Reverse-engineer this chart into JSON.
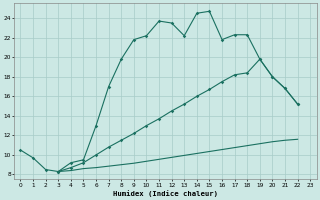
{
  "xlabel": "Humidex (Indice chaleur)",
  "bg_color": "#cce8e4",
  "grid_color": "#a8ccc8",
  "line_color": "#1a7060",
  "xlim": [
    -0.5,
    23.5
  ],
  "ylim": [
    7.5,
    25.5
  ],
  "xticks": [
    0,
    1,
    2,
    3,
    4,
    5,
    6,
    7,
    8,
    9,
    10,
    11,
    12,
    13,
    14,
    15,
    16,
    17,
    18,
    19,
    20,
    21,
    22,
    23
  ],
  "yticks": [
    8,
    10,
    12,
    14,
    16,
    18,
    20,
    22,
    24
  ],
  "line1_x": [
    0,
    1,
    2,
    3,
    4,
    5,
    6,
    7,
    8,
    9,
    10,
    11,
    12,
    13,
    14,
    15,
    16,
    17,
    18,
    19,
    20,
    21,
    22
  ],
  "line1_y": [
    10.5,
    9.7,
    8.5,
    8.3,
    9.2,
    9.5,
    13.0,
    17.0,
    19.8,
    21.8,
    22.2,
    23.7,
    23.5,
    22.2,
    24.5,
    24.7,
    21.8,
    22.3,
    22.3,
    19.8,
    18.0,
    16.8,
    15.2
  ],
  "line2_x": [
    3,
    4,
    5,
    6,
    7,
    8,
    9,
    10,
    11,
    12,
    13,
    14,
    15,
    16,
    17,
    18,
    19,
    20,
    21,
    22
  ],
  "line2_y": [
    8.3,
    8.7,
    9.2,
    10.0,
    10.8,
    11.5,
    12.2,
    13.0,
    13.7,
    14.5,
    15.2,
    16.0,
    16.7,
    17.5,
    18.2,
    18.4,
    19.8,
    18.0,
    16.8,
    15.2
  ],
  "line3_x": [
    3,
    4,
    5,
    6,
    7,
    8,
    9,
    10,
    11,
    12,
    13,
    14,
    15,
    16,
    17,
    18,
    19,
    20,
    21,
    22
  ],
  "line3_y": [
    8.3,
    8.4,
    8.6,
    8.7,
    8.85,
    9.0,
    9.15,
    9.35,
    9.55,
    9.75,
    9.95,
    10.15,
    10.35,
    10.55,
    10.75,
    10.95,
    11.15,
    11.35,
    11.5,
    11.6
  ]
}
